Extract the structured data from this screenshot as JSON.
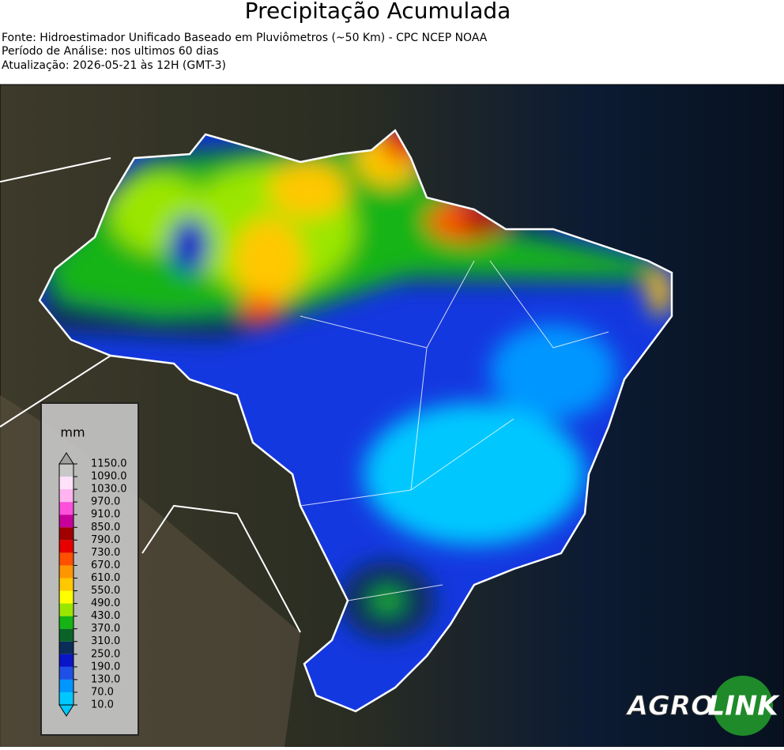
{
  "header": {
    "title": "Precipitação Acumulada",
    "lines": [
      "Fonte: Hidroestimador Unificado Baseado em Pluviômetros (~50 Km) - CPC NCEP NOAA",
      "Período de Análise: nos ultimos 60 dias",
      "Atualização: 2026-05-21 às 12H (GMT-3)"
    ]
  },
  "colorbar": {
    "unit": "mm",
    "ticks": [
      {
        "value": 10,
        "label": "10.0"
      },
      {
        "value": 70,
        "label": "70.0"
      },
      {
        "value": 130,
        "label": "130.0"
      },
      {
        "value": 190,
        "label": "190.0"
      },
      {
        "value": 250,
        "label": "250.0"
      },
      {
        "value": 310,
        "label": "310.0"
      },
      {
        "value": 370,
        "label": "370.0"
      },
      {
        "value": 430,
        "label": "430.0"
      },
      {
        "value": 490,
        "label": "490.0"
      },
      {
        "value": 550,
        "label": "550.0"
      },
      {
        "value": 610,
        "label": "610.0"
      },
      {
        "value": 670,
        "label": "670.0"
      },
      {
        "value": 730,
        "label": "730.0"
      },
      {
        "value": 790,
        "label": "790.0"
      },
      {
        "value": 850,
        "label": "850.0"
      },
      {
        "value": 910,
        "label": "910.0"
      },
      {
        "value": 970,
        "label": "970.0"
      },
      {
        "value": 1030,
        "label": "1030.0"
      },
      {
        "value": 1090,
        "label": "1090.0"
      },
      {
        "value": 1150,
        "label": "1150.0"
      }
    ],
    "colors": [
      "#00c8ff",
      "#0096ff",
      "#1e50e6",
      "#0a14c8",
      "#0a2d5a",
      "#0a6428",
      "#14b414",
      "#9be600",
      "#ffff00",
      "#ffc800",
      "#ff9600",
      "#ff5000",
      "#e60000",
      "#a00000",
      "#c8009b",
      "#ff50dc",
      "#ffb4f0",
      "#ffe1fa",
      "#c8c8c8"
    ],
    "under_color": "#00c8ff",
    "over_color": "#a0a0a0"
  },
  "logo": {
    "left": "AGRO",
    "right": "LINK"
  }
}
